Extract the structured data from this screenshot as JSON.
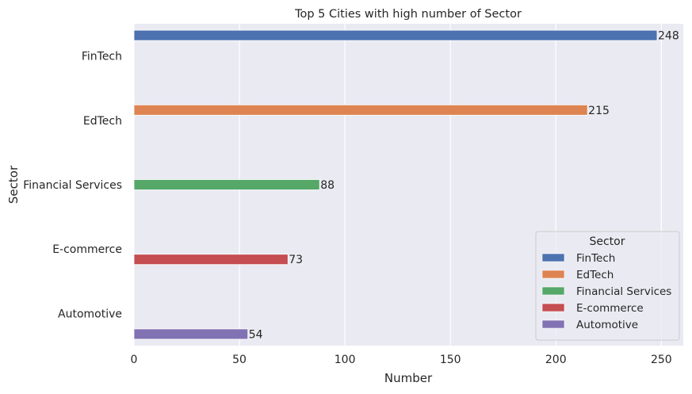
{
  "chart_data": {
    "type": "bar",
    "orientation": "horizontal",
    "title": "Top 5 Cities with high number of Sector",
    "xlabel": "Number",
    "ylabel": "Sector",
    "categories": [
      "FinTech",
      "EdTech",
      "Financial Services",
      "E-commerce",
      "Automotive"
    ],
    "series": [
      {
        "name": "FinTech",
        "color": "#4c72b0",
        "category": "FinTech",
        "value": 248
      },
      {
        "name": "EdTech",
        "color": "#dd8452",
        "category": "EdTech",
        "value": 215
      },
      {
        "name": "Financial Services",
        "color": "#55a868",
        "category": "Financial Services",
        "value": 88
      },
      {
        "name": "E-commerce",
        "color": "#c44e52",
        "category": "E-commerce",
        "value": 73
      },
      {
        "name": "Automotive",
        "color": "#8172b3",
        "category": "Automotive",
        "value": 54
      }
    ],
    "xticks": [
      0,
      50,
      100,
      150,
      200,
      250
    ],
    "xlim": [
      0,
      260.4
    ],
    "grid": true,
    "legend": {
      "title": "Sector",
      "placement": "lower-right"
    },
    "background": "#eaeaf2"
  }
}
